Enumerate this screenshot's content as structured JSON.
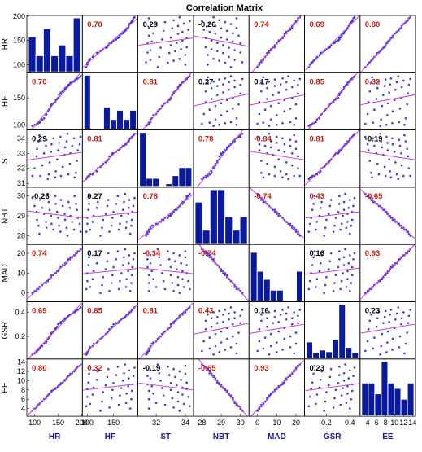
{
  "chart_data": {
    "type": "scatter-matrix",
    "title": "Correlation Matrix",
    "variables": [
      "HR",
      "HF",
      "ST",
      "NBT",
      "MAD",
      "GSR",
      "EE"
    ],
    "ranges": {
      "HR": [
        85,
        200
      ],
      "HF": [
        92,
        195
      ],
      "ST": [
        30.8,
        34.5
      ],
      "NBT": [
        27.6,
        30.4
      ],
      "MAD": [
        -4,
        24
      ],
      "GSR": [
        0.02,
        0.48
      ],
      "EE": [
        2.5,
        14.5
      ]
    },
    "ticks": {
      "HR": [
        "100",
        "150",
        "200"
      ],
      "HF": [
        "100",
        "150"
      ],
      "ST": [
        "32",
        "34"
      ],
      "NBT": [
        "28",
        "29",
        "30"
      ],
      "MAD": [
        "0",
        "10",
        "20"
      ],
      "GSR": [
        "0.2",
        "0.4"
      ],
      "EE": [
        "4",
        "6",
        "8",
        "10",
        "12",
        "14"
      ]
    },
    "tick_values": {
      "HR": [
        100,
        150,
        200
      ],
      "HF": [
        100,
        150
      ],
      "ST": [
        32,
        34
      ],
      "NBT": [
        28,
        29,
        30
      ],
      "MAD": [
        0,
        10,
        20
      ],
      "GSR": [
        0.2,
        0.4
      ],
      "EE": [
        4,
        6,
        8,
        10,
        12,
        14
      ]
    },
    "y_ticks": {
      "HR": [
        "200",
        "150",
        "100"
      ],
      "HF": [
        "150",
        "100"
      ],
      "ST": [
        "34",
        "33",
        "32",
        "31"
      ],
      "NBT": [
        "30",
        "29",
        "28"
      ],
      "MAD": [
        "20",
        "10",
        "0"
      ],
      "GSR": [
        "0.4",
        "0.2"
      ],
      "EE": [
        "14",
        "12",
        "10",
        "8",
        "6",
        "4"
      ]
    },
    "y_tick_values": {
      "HR": [
        200,
        150,
        100
      ],
      "HF": [
        150,
        100
      ],
      "ST": [
        34,
        33,
        32,
        31
      ],
      "NBT": [
        30,
        29,
        28
      ],
      "MAD": [
        20,
        10,
        0
      ],
      "GSR": [
        0.4,
        0.2
      ],
      "EE": [
        14,
        12,
        10,
        8,
        6,
        4
      ]
    },
    "correlation_labels": [
      [
        "",
        "0.70",
        "0.29",
        "-0.26",
        "0.74",
        "0.69",
        "0.80"
      ],
      [
        "0.70",
        "",
        "0.81",
        "0.27",
        "0.17",
        "0.85",
        "0.32"
      ],
      [
        "0.29",
        "0.81",
        "",
        "0.78",
        "-0.34",
        "0.81",
        "-0.19"
      ],
      [
        "-0.26",
        "0.27",
        "0.78",
        "",
        "-0.74",
        "0.43",
        "-0.65"
      ],
      [
        "0.74",
        "0.17",
        "-0.34",
        "-0.74",
        "",
        "0.16",
        "0.93"
      ],
      [
        "0.69",
        "0.85",
        "0.81",
        "0.43",
        "0.16",
        "",
        "0.23"
      ],
      [
        "0.80",
        "0.32",
        "-0.19",
        "-0.65",
        "0.93",
        "0.23",
        ""
      ]
    ],
    "significant": [
      [
        false,
        true,
        false,
        false,
        true,
        true,
        true
      ],
      [
        true,
        false,
        true,
        false,
        false,
        true,
        true
      ],
      [
        false,
        true,
        false,
        true,
        true,
        true,
        false
      ],
      [
        false,
        false,
        true,
        false,
        true,
        true,
        true
      ],
      [
        true,
        false,
        true,
        true,
        false,
        false,
        true
      ],
      [
        true,
        true,
        true,
        true,
        false,
        false,
        false
      ],
      [
        true,
        true,
        false,
        true,
        true,
        false,
        false
      ]
    ],
    "histograms": {
      "HR": [
        0.65,
        0.3,
        0.8,
        0.3,
        0.5,
        0.3,
        1.0
      ],
      "HF": [
        1.0,
        0.0,
        0.0,
        0.41,
        0.18,
        0.35,
        0.18,
        0.35
      ],
      "ST": [
        1.0,
        0.15,
        0.15,
        0.0,
        0.05,
        0.2,
        0.35,
        0.35
      ],
      "NBT": [
        0.77,
        0.25,
        1.0,
        1.0,
        0.5,
        0.25,
        0.5
      ],
      "MAD": [
        0.9,
        0.55,
        0.4,
        0.2,
        0.2,
        0.0,
        0.0,
        0.55
      ],
      "GSR": [
        0.3,
        0.1,
        0.15,
        0.12,
        0.35,
        1.0,
        0.2,
        0.1
      ],
      "EE": [
        0.6,
        0.6,
        0.4,
        1.0,
        0.6,
        0.5,
        0.3,
        0.6
      ]
    },
    "samples": {
      "HR": [
        95,
        100,
        104,
        108,
        112,
        116,
        120,
        124,
        128,
        132,
        136,
        140,
        144,
        148,
        152,
        156,
        160,
        164,
        168,
        172,
        176,
        180,
        184,
        188,
        192,
        196,
        198,
        110,
        130,
        150,
        170,
        190,
        125,
        145,
        165,
        185,
        105,
        135,
        155,
        175
      ],
      "HF": [
        98,
        100,
        102,
        104,
        110,
        118,
        125,
        130,
        138,
        142,
        146,
        150,
        155,
        160,
        165,
        170,
        172,
        175,
        178,
        180,
        182,
        184,
        186,
        188,
        190,
        100,
        105,
        112,
        120,
        128,
        135,
        140,
        148,
        158,
        162,
        168,
        174,
        179,
        185,
        103
      ],
      "ST": [
        31.3,
        31.4,
        31.5,
        31.5,
        31.6,
        31.8,
        32.0,
        32.2,
        32.4,
        32.6,
        32.8,
        33.0,
        33.1,
        33.2,
        33.3,
        33.4,
        33.5,
        33.6,
        33.7,
        33.8,
        33.9,
        34.0,
        34.1,
        34.2,
        34.3,
        31.4,
        31.5,
        31.7,
        32.1,
        32.5,
        32.9,
        33.2,
        33.5,
        33.8,
        34.0,
        31.6,
        32.3,
        33.0,
        33.6,
        34.1
      ],
      "NBT": [
        28.0,
        28.1,
        28.2,
        28.3,
        28.4,
        28.5,
        28.6,
        28.7,
        28.8,
        28.9,
        29.0,
        29.1,
        29.2,
        29.3,
        29.4,
        29.5,
        29.6,
        29.7,
        29.8,
        29.9,
        30.0,
        30.1,
        28.3,
        28.6,
        28.9,
        29.2,
        29.5,
        29.8,
        30.0,
        28.2,
        28.5,
        28.8,
        29.1,
        29.4,
        29.7,
        28.4,
        28.7,
        29.0,
        29.3,
        29.6
      ],
      "MAD": [
        0,
        1,
        2,
        3,
        4,
        5,
        6,
        7,
        8,
        9,
        10,
        11,
        12,
        13,
        14,
        15,
        16,
        17,
        18,
        19,
        20,
        21,
        22,
        1,
        3,
        5,
        7,
        9,
        11,
        13,
        15,
        17,
        19,
        21,
        2,
        6,
        10,
        14,
        18,
        20
      ],
      "GSR": [
        0.05,
        0.06,
        0.08,
        0.1,
        0.12,
        0.14,
        0.16,
        0.18,
        0.2,
        0.22,
        0.24,
        0.26,
        0.28,
        0.3,
        0.31,
        0.32,
        0.33,
        0.34,
        0.35,
        0.36,
        0.37,
        0.38,
        0.39,
        0.4,
        0.41,
        0.42,
        0.43,
        0.44,
        0.07,
        0.11,
        0.15,
        0.19,
        0.23,
        0.27,
        0.31,
        0.35,
        0.38,
        0.4,
        0.42,
        0.09
      ],
      "EE": [
        3.5,
        4.0,
        4.5,
        5.0,
        5.5,
        6.0,
        6.5,
        7.0,
        7.5,
        8.0,
        8.5,
        9.0,
        9.5,
        10.0,
        10.5,
        11.0,
        11.5,
        12.0,
        12.5,
        13.0,
        13.5,
        4.2,
        5.2,
        6.2,
        7.2,
        8.2,
        9.2,
        10.2,
        11.2,
        12.2,
        13.2,
        4.8,
        6.8,
        8.8,
        10.8,
        12.8,
        7.8,
        8.4,
        9.6,
        11.6
      ]
    },
    "colors": {
      "points": "#3b3be0",
      "fit_line": "#d23ad2",
      "histogram": "#0a1a9e",
      "significant_label": "#cc1a0a",
      "insignificant_label": "#000000",
      "axis_label": "#1a1a8c"
    }
  }
}
